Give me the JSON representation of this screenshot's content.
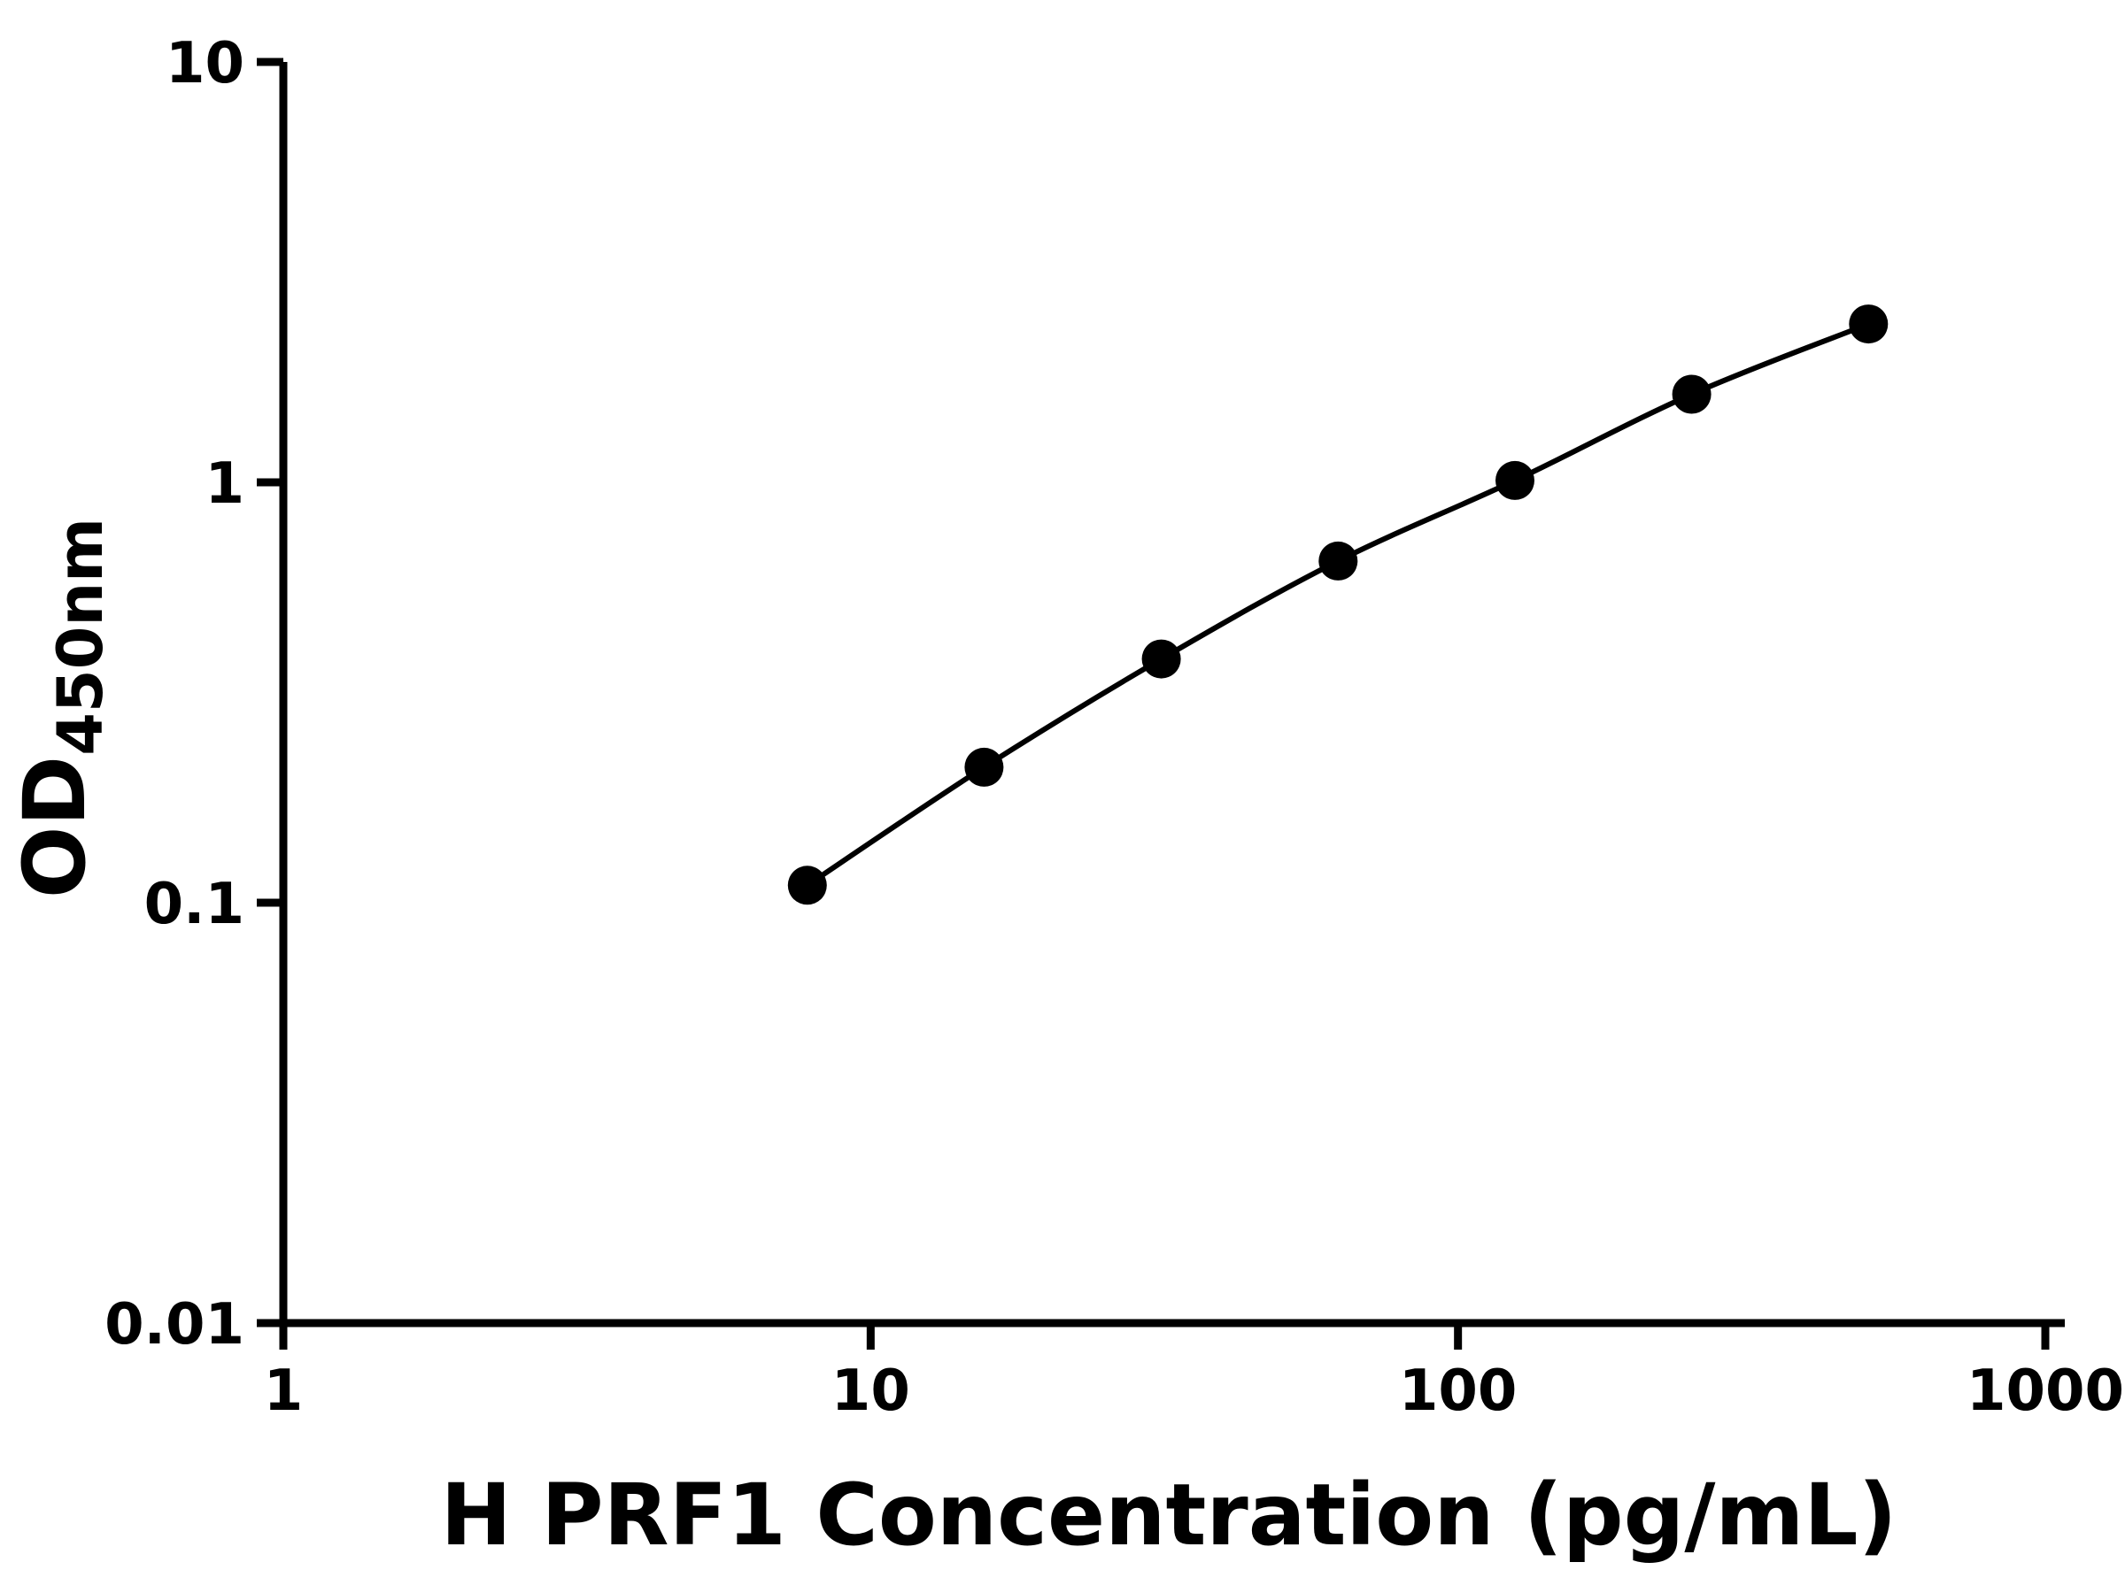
{
  "chart_data": {
    "type": "scatter",
    "subtype": "log-log standard curve with connecting smooth line",
    "title": "",
    "xlabel": "H PRF1 Concentration (pg/mL)",
    "ylabel_main": "OD",
    "ylabel_sub": "450nm",
    "x_scale": "log",
    "y_scale": "log",
    "xlim": [
      1,
      1000
    ],
    "ylim": [
      0.01,
      10
    ],
    "x": [
      7.8,
      15.6,
      31.25,
      62.5,
      125,
      250,
      500
    ],
    "y": [
      0.11,
      0.21,
      0.38,
      0.65,
      1.01,
      1.62,
      2.38
    ],
    "x_ticks": [
      {
        "value": 1,
        "label": "1"
      },
      {
        "value": 10,
        "label": "10"
      },
      {
        "value": 100,
        "label": "100"
      },
      {
        "value": 1000,
        "label": "1000"
      }
    ],
    "y_ticks": [
      {
        "value": 0.01,
        "label": "0.01"
      },
      {
        "value": 0.1,
        "label": "0.1"
      },
      {
        "value": 1,
        "label": "1"
      },
      {
        "value": 10,
        "label": "10"
      }
    ],
    "grid": false,
    "legend": "none",
    "colors": {
      "marker": "#000000",
      "line": "#000000",
      "axis": "#000000",
      "text": "#000000",
      "background": "#ffffff"
    }
  }
}
